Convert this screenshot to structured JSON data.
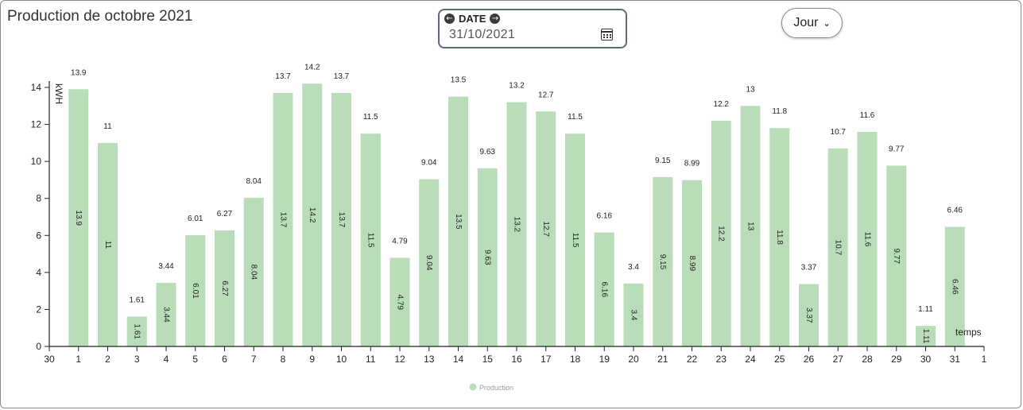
{
  "page": {
    "title": "Production de octobre 2021"
  },
  "date_picker": {
    "label": "DATE",
    "value": "31/10/2021",
    "prev_icon": "arrow-left-circle-icon",
    "next_icon": "arrow-right-circle-icon",
    "calendar_icon": "calendar-icon"
  },
  "period_select": {
    "value": "Jour"
  },
  "chart_data": {
    "type": "bar",
    "categories": [
      "1",
      "2",
      "3",
      "4",
      "5",
      "6",
      "7",
      "8",
      "9",
      "10",
      "11",
      "12",
      "13",
      "14",
      "15",
      "16",
      "17",
      "18",
      "19",
      "20",
      "21",
      "22",
      "23",
      "24",
      "25",
      "26",
      "27",
      "28",
      "29",
      "30",
      "31"
    ],
    "values": [
      13.9,
      11,
      1.61,
      3.44,
      6.01,
      6.27,
      8.04,
      13.7,
      14.2,
      13.7,
      11.5,
      4.79,
      9.04,
      13.5,
      9.63,
      13.2,
      12.7,
      11.5,
      6.16,
      3.4,
      9.15,
      8.99,
      12.2,
      13,
      11.8,
      3.37,
      10.7,
      11.6,
      9.77,
      1.11,
      6.46
    ],
    "ylabel": "kWH",
    "xlabel": "temps",
    "ylim": [
      0,
      14
    ],
    "yticks": [
      0,
      2,
      4,
      6,
      8,
      10,
      12,
      14
    ],
    "x_edge_labels": [
      "30",
      "1"
    ],
    "series": [
      {
        "name": "Production",
        "color": "#b8ddb8"
      }
    ],
    "legend_position": "bottom-center"
  }
}
